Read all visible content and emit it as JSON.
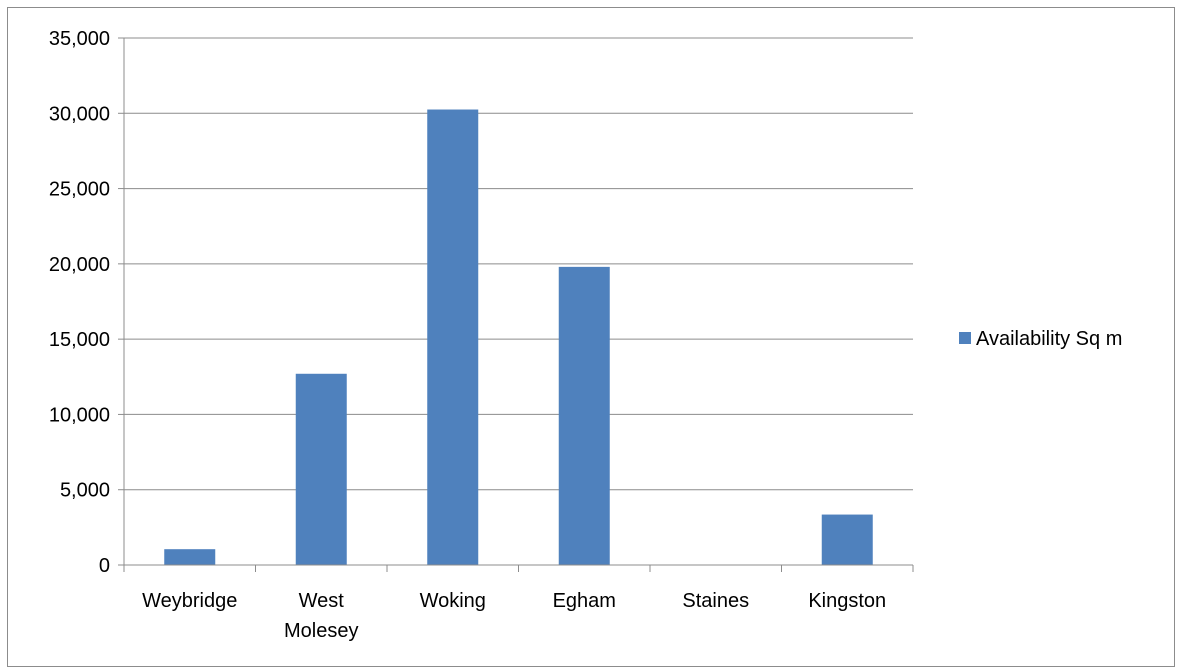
{
  "chart_data": {
    "type": "bar",
    "categories": [
      [
        "Weybridge"
      ],
      [
        "West",
        "Molesey"
      ],
      [
        "Woking"
      ],
      [
        "Egham"
      ],
      [
        "Staines"
      ],
      [
        "Kingston"
      ]
    ],
    "series": [
      {
        "name": "Availability Sq m",
        "values": [
          1050,
          12700,
          30250,
          19800,
          0,
          3350
        ],
        "color": "#4f81bd"
      }
    ],
    "ylim": [
      0,
      35000
    ],
    "yticks": [
      0,
      5000,
      10000,
      15000,
      20000,
      25000,
      30000,
      35000
    ],
    "ytick_labels": [
      "0",
      "5,000",
      "10,000",
      "15,000",
      "20,000",
      "25,000",
      "30,000",
      "35,000"
    ],
    "grid": true,
    "legend": "right"
  }
}
